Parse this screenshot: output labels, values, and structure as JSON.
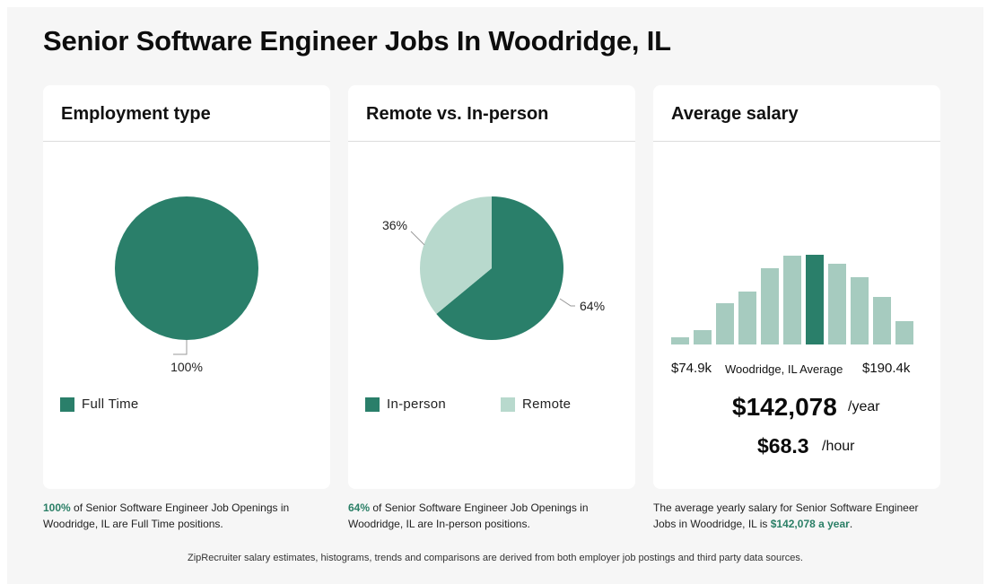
{
  "page": {
    "title": "Senior Software Engineer Jobs In Woodridge, IL"
  },
  "colors": {
    "dark_green": "#2a7f6a",
    "light_green": "#b8d9cd",
    "hist_light": "#a6cbbf",
    "accent_text": "#2a7f66"
  },
  "cards": {
    "employment": {
      "title": "Employment type",
      "legend": [
        "Full Time"
      ],
      "caption_highlight": "100%",
      "caption_rest": " of Senior Software Engineer Job Openings in Woodridge, IL are Full Time positions."
    },
    "remote": {
      "title": "Remote vs. In-person",
      "legend": [
        "In-person",
        "Remote"
      ],
      "caption_highlight": "64%",
      "caption_rest": " of Senior Software Engineer Job Openings in Woodridge, IL are In-person positions."
    },
    "salary": {
      "title": "Average salary",
      "min_label": "$74.9k",
      "mid_label": "Woodridge, IL Average",
      "max_label": "$190.4k",
      "yearly": "$142,078",
      "yearly_unit": "/year",
      "hourly": "$68.3",
      "hourly_unit": "/hour",
      "caption_pre": "The average yearly salary for Senior Software Engineer Jobs in Woodridge, IL is ",
      "caption_highlight": "$142,078 a year",
      "caption_post": "."
    }
  },
  "footer": "ZipRecruiter salary estimates, histograms, trends and comparisons are derived from both employer job postings and third party data sources.",
  "chart_data": [
    {
      "type": "pie",
      "title": "Employment type",
      "labels": [
        "Full Time"
      ],
      "values": [
        100
      ],
      "value_labels": [
        "100%"
      ]
    },
    {
      "type": "pie",
      "title": "Remote vs. In-person",
      "labels": [
        "In-person",
        "Remote"
      ],
      "values": [
        64,
        36
      ],
      "value_labels": [
        "64%",
        "36%"
      ]
    },
    {
      "type": "bar",
      "title": "Average salary",
      "categories": [
        "1",
        "2",
        "3",
        "4",
        "5",
        "6",
        "7",
        "8",
        "9",
        "10",
        "11"
      ],
      "values": [
        8,
        16,
        46,
        59,
        85,
        99,
        100,
        90,
        75,
        53,
        26
      ],
      "highlight_index": 6,
      "xlabel_left": "$74.9k",
      "xlabel_right": "$190.4k"
    }
  ]
}
